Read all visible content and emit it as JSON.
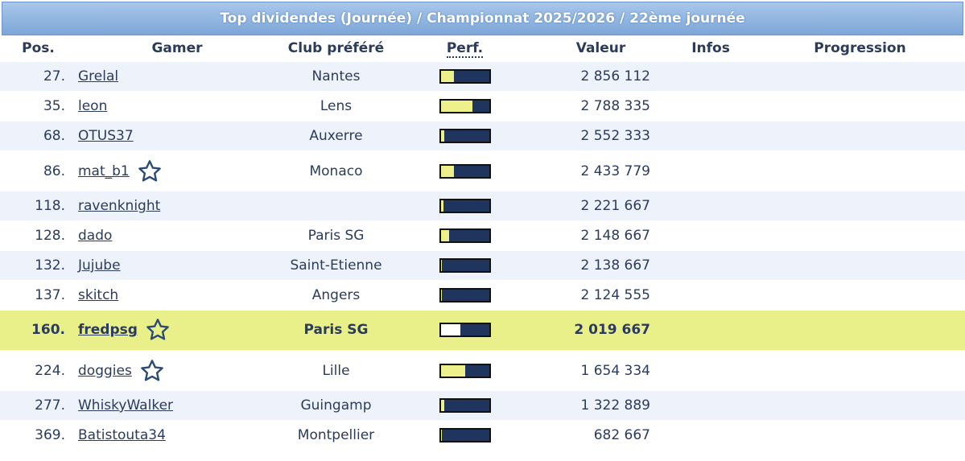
{
  "header": {
    "title": "Top dividendes (Journée) / Championnat 2025/2026 / 22ème journée"
  },
  "columns": {
    "pos": "Pos.",
    "gamer": "Gamer",
    "club": "Club préféré",
    "perf": "Perf.",
    "valeur": "Valeur",
    "infos": "Infos",
    "progression": "Progression"
  },
  "colors": {
    "bar_bg": "#1f355e",
    "bar_fill": "#eef08c",
    "highlight_row": "#e9f08a",
    "title_bar": "#7ca6d8"
  },
  "rows": [
    {
      "pos": "27.",
      "gamer": "Grelal",
      "star": false,
      "club": "Nantes",
      "perf": 0.28,
      "valeur": "2 856 112"
    },
    {
      "pos": "35.",
      "gamer": "leon",
      "star": false,
      "club": "Lens",
      "perf": 0.65,
      "valeur": "2 788 335"
    },
    {
      "pos": "68.",
      "gamer": "OTUS37",
      "star": false,
      "club": "Auxerre",
      "perf": 0.08,
      "valeur": "2 552 333"
    },
    {
      "pos": "86.",
      "gamer": "mat_b1",
      "star": true,
      "club": "Monaco",
      "perf": 0.28,
      "valeur": "2 433 779"
    },
    {
      "pos": "118.",
      "gamer": "ravenknight",
      "star": false,
      "club": "",
      "perf": 0.05,
      "valeur": "2 221 667"
    },
    {
      "pos": "128.",
      "gamer": "dado",
      "star": false,
      "club": "Paris SG",
      "perf": 0.18,
      "valeur": "2 148 667"
    },
    {
      "pos": "132.",
      "gamer": "Jujube",
      "star": false,
      "club": "Saint-Etienne",
      "perf": 0.03,
      "valeur": "2 138 667"
    },
    {
      "pos": "137.",
      "gamer": "skitch",
      "star": false,
      "club": "Angers",
      "perf": 0.03,
      "valeur": "2 124 555"
    },
    {
      "pos": "160.",
      "gamer": "fredpsg",
      "star": true,
      "club": "Paris SG",
      "perf": 0.4,
      "valeur": "2 019 667",
      "highlight": true
    },
    {
      "pos": "224.",
      "gamer": "doggies",
      "star": true,
      "club": "Lille",
      "perf": 0.5,
      "valeur": "1 654 334"
    },
    {
      "pos": "277.",
      "gamer": "WhiskyWalker",
      "star": false,
      "club": "Guingamp",
      "perf": 0.08,
      "valeur": "1 322 889"
    },
    {
      "pos": "369.",
      "gamer": "Batistouta34",
      "star": false,
      "club": "Montpellier",
      "perf": 0.03,
      "valeur": "682 667"
    }
  ]
}
